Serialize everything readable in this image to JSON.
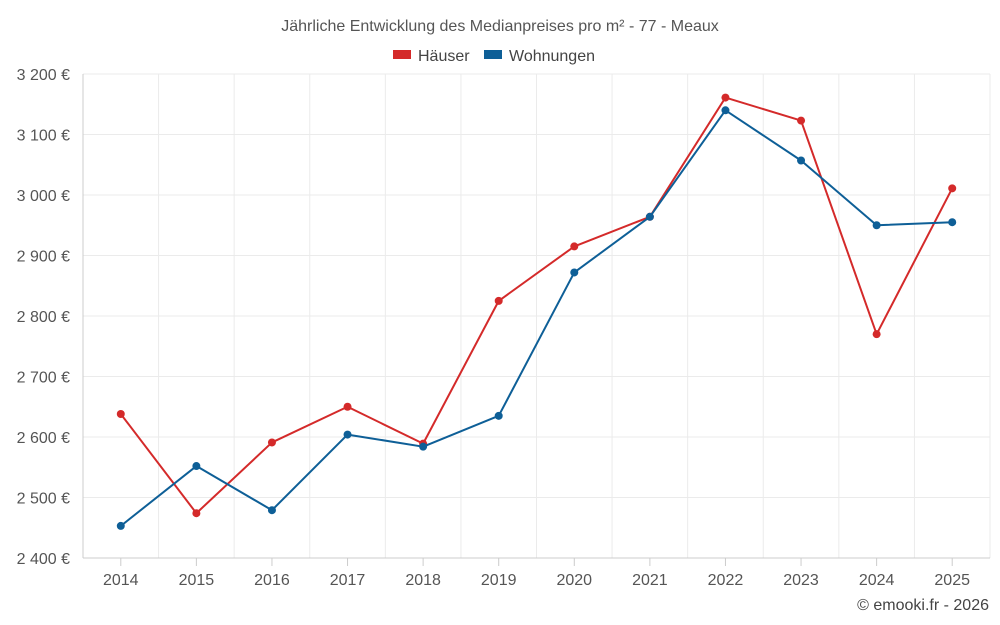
{
  "chart_data": {
    "type": "line",
    "title": "Jährliche Entwicklung des Medianpreises pro m² - 77 - Meaux",
    "categories": [
      "2014",
      "2015",
      "2016",
      "2017",
      "2018",
      "2019",
      "2020",
      "2021",
      "2022",
      "2023",
      "2024",
      "2025"
    ],
    "series": [
      {
        "name": "Häuser",
        "color": "#d42a2a",
        "values": [
          2638,
          2474,
          2591,
          2650,
          2589,
          2825,
          2915,
          2964,
          3161,
          3123,
          2770,
          3011
        ]
      },
      {
        "name": "Wohnungen",
        "color": "#0e5f97",
        "values": [
          2453,
          2552,
          2479,
          2604,
          2584,
          2635,
          2872,
          2964,
          3140,
          3057,
          2950,
          2955
        ]
      }
    ],
    "ylim": [
      2400,
      3200
    ],
    "yticks": [
      2400,
      2500,
      2600,
      2700,
      2800,
      2900,
      3000,
      3100,
      3200
    ],
    "ytick_labels": [
      "2 400 €",
      "2 500 €",
      "2 600 €",
      "2 700 €",
      "2 800 €",
      "2 900 €",
      "3 000 €",
      "3 100 €",
      "3 200 €"
    ],
    "xlabel": "",
    "ylabel": "",
    "grid": true,
    "legend_position": "top-center"
  },
  "copyright": "© emooki.fr - 2026"
}
